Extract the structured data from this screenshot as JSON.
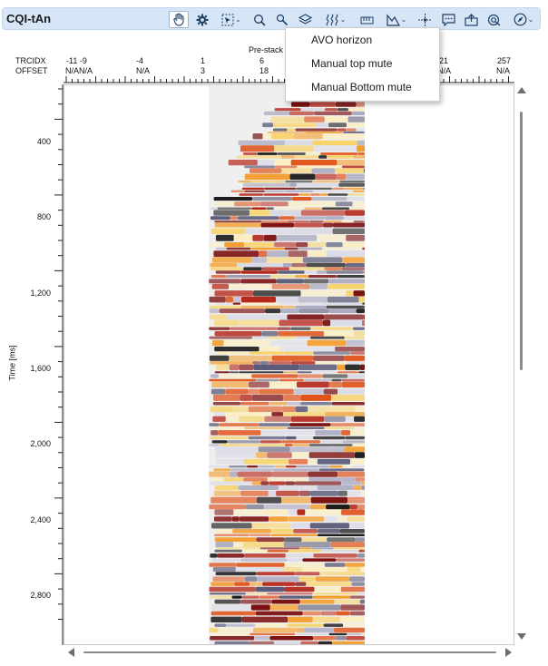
{
  "window": {
    "title": "CQI-tAn"
  },
  "toolbar": {
    "icons": [
      "pan-hand-icon",
      "settings-gear-icon",
      "select-region-icon",
      "zoom-icon",
      "pick-icon",
      "layers-icon",
      "horizon-tools-icon",
      "ruler-icon",
      "mute-tools-icon",
      "crosshair-icon",
      "comment-icon",
      "export-icon",
      "find-icon",
      "compass-icon"
    ]
  },
  "menu": {
    "items": [
      "AVO horizon",
      "Manual top mute",
      "Manual Bottom mute"
    ]
  },
  "header": {
    "trcidx_label": "TRCIDX",
    "offset_label": "OFFSET",
    "section_title": "Pre-stack T",
    "trcidx_values": [
      "-11 -9",
      "-4",
      "1",
      "6",
      "21",
      "257"
    ],
    "offset_values": [
      "N/AN/A",
      "N/A",
      "3",
      "18",
      "N/A",
      "N/A"
    ]
  },
  "yaxis": {
    "title": "Time [ms]",
    "ticks": [
      "400",
      "800",
      "1,200",
      "1,600",
      "2,000",
      "2,400",
      "2,800"
    ]
  },
  "colors": {
    "accent": "#d6e6f7",
    "icon": "#1e3f66"
  }
}
